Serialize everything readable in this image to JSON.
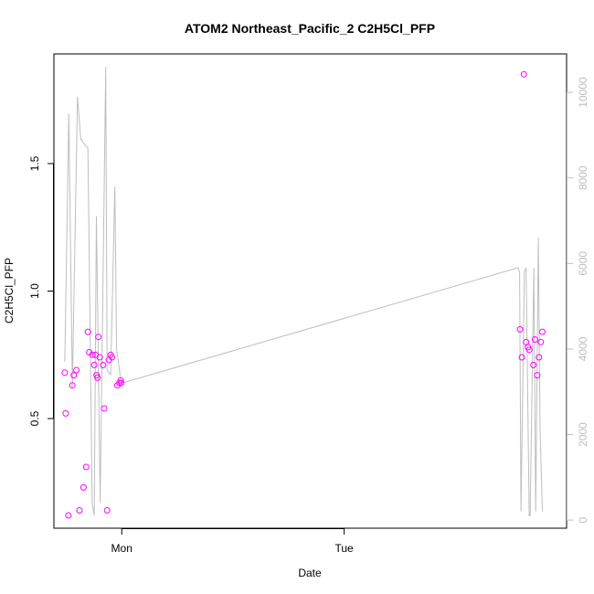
{
  "chart_data": {
    "type": "scatter",
    "title": "ATOM2 Northeast_Pacific_2 C2H5Cl_PFP",
    "xlabel": "Date",
    "ylabel": "C2H5Cl_PFP",
    "x_ticks": [
      "Mon",
      "Tue"
    ],
    "y_ticks": [
      "0.5",
      "1.0",
      "1.5"
    ],
    "y2_ticks": [
      "0",
      "2000",
      "4000",
      "6000",
      "8000",
      "10000"
    ],
    "ylim": [
      0.07,
      1.93
    ],
    "y2lim": [
      -190,
      10900
    ],
    "xlim": [
      -0.305,
      2.0
    ],
    "colors": {
      "points": "#ff00ff",
      "altitude_line": "#bebebe",
      "axes": "#000000",
      "secondary_axis": "#bebebe"
    },
    "series": [
      {
        "kind": "points",
        "x": [
          -0.256,
          -0.252,
          -0.24,
          -0.222,
          -0.216,
          -0.204,
          -0.19,
          -0.172,
          -0.16,
          -0.152,
          -0.146,
          -0.132,
          -0.124,
          -0.118,
          -0.113,
          -0.109,
          -0.105,
          -0.099,
          -0.084,
          -0.079,
          -0.066,
          -0.058,
          -0.05,
          -0.044,
          -0.02,
          -0.011,
          -0.005,
          -0.002,
          1.791,
          1.799,
          1.808,
          1.818,
          1.826,
          1.832,
          1.851,
          1.858,
          1.868,
          1.876,
          1.884,
          1.891
        ],
        "y": [
          0.68,
          0.52,
          0.12,
          0.63,
          0.67,
          0.69,
          0.14,
          0.23,
          0.31,
          0.84,
          0.76,
          0.75,
          0.71,
          0.75,
          0.67,
          0.66,
          0.82,
          0.74,
          0.71,
          0.54,
          0.14,
          0.73,
          0.75,
          0.74,
          0.63,
          0.64,
          0.65,
          0.64,
          0.85,
          0.74,
          1.85,
          0.8,
          0.78,
          0.77,
          0.71,
          0.81,
          0.67,
          0.74,
          0.8,
          0.84
        ]
      },
      {
        "kind": "line",
        "axis": "secondary",
        "x": [
          -0.256,
          -0.238,
          -0.222,
          -0.199,
          -0.184,
          -0.18,
          -0.17,
          -0.152,
          -0.133,
          -0.124,
          -0.114,
          -0.097,
          -0.072,
          -0.066,
          -0.05,
          -0.031,
          -0.023,
          -0.002,
          1.782,
          1.789,
          1.795,
          1.81,
          1.818,
          1.832,
          1.836,
          1.853,
          1.861,
          1.873,
          1.881,
          1.891
        ],
        "y": [
          3700,
          9500,
          3100,
          9900,
          8900,
          8900,
          8800,
          8700,
          400,
          100,
          7100,
          400,
          10600,
          3500,
          3400,
          7800,
          4000,
          3200,
          5900,
          5800,
          200,
          5800,
          5900,
          100,
          100,
          5900,
          200,
          6600,
          2100,
          200
        ]
      }
    ]
  }
}
